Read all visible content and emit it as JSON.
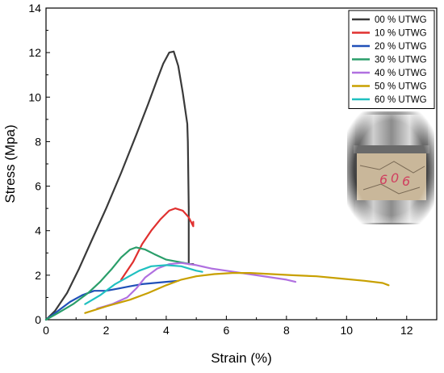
{
  "chart_data": {
    "type": "line",
    "title": "",
    "xlabel": "Strain (%)",
    "ylabel": "Stress (Mpa)",
    "xlim": [
      0,
      13
    ],
    "ylim": [
      0,
      14
    ],
    "xticks": [
      0,
      2,
      4,
      6,
      8,
      10,
      12
    ],
    "yticks": [
      0,
      2,
      4,
      6,
      8,
      10,
      12,
      14
    ],
    "grid": false,
    "legend_position": "top-right",
    "inset_photo": "cylindrical specimen in compression test",
    "series": [
      {
        "name": "00 % UTWG",
        "color": "#3a3a3a",
        "points": [
          [
            0,
            0
          ],
          [
            0.3,
            0.4
          ],
          [
            0.7,
            1.2
          ],
          [
            1.1,
            2.3
          ],
          [
            1.5,
            3.5
          ],
          [
            2.0,
            5.0
          ],
          [
            2.5,
            6.6
          ],
          [
            3.0,
            8.3
          ],
          [
            3.4,
            9.7
          ],
          [
            3.7,
            10.8
          ],
          [
            3.9,
            11.5
          ],
          [
            4.1,
            12.0
          ],
          [
            4.25,
            12.05
          ],
          [
            4.4,
            11.4
          ],
          [
            4.55,
            10.2
          ],
          [
            4.7,
            8.8
          ],
          [
            4.72,
            8.0
          ],
          [
            4.75,
            5.0
          ],
          [
            4.75,
            2.5
          ],
          [
            4.9,
            2.5
          ]
        ]
      },
      {
        "name": "10 % UTWG",
        "color": "#e0302f",
        "points": [
          [
            2.5,
            1.8
          ],
          [
            2.9,
            2.6
          ],
          [
            3.2,
            3.4
          ],
          [
            3.5,
            4.0
          ],
          [
            3.8,
            4.5
          ],
          [
            4.1,
            4.9
          ],
          [
            4.3,
            5.0
          ],
          [
            4.55,
            4.9
          ],
          [
            4.75,
            4.6
          ],
          [
            4.9,
            4.2
          ],
          [
            4.9,
            4.4
          ]
        ]
      },
      {
        "name": "20 % UTWG",
        "color": "#2050b8",
        "points": [
          [
            0,
            0
          ],
          [
            0.4,
            0.4
          ],
          [
            0.8,
            0.8
          ],
          [
            1.2,
            1.1
          ],
          [
            1.6,
            1.3
          ],
          [
            2.0,
            1.3
          ],
          [
            2.4,
            1.4
          ],
          [
            2.8,
            1.5
          ],
          [
            3.2,
            1.6
          ],
          [
            3.6,
            1.65
          ],
          [
            4.0,
            1.7
          ],
          [
            4.4,
            1.75
          ]
        ]
      },
      {
        "name": "30 % UTWG",
        "color": "#2a9e6a",
        "points": [
          [
            0,
            0
          ],
          [
            0.4,
            0.3
          ],
          [
            0.9,
            0.7
          ],
          [
            1.4,
            1.2
          ],
          [
            1.8,
            1.7
          ],
          [
            2.2,
            2.3
          ],
          [
            2.5,
            2.8
          ],
          [
            2.8,
            3.15
          ],
          [
            3.0,
            3.25
          ],
          [
            3.3,
            3.15
          ],
          [
            3.6,
            2.95
          ],
          [
            4.0,
            2.7
          ],
          [
            4.4,
            2.6
          ],
          [
            4.8,
            2.5
          ]
        ]
      },
      {
        "name": "40 % UTWG",
        "color": "#b070e0",
        "points": [
          [
            1.7,
            0.5
          ],
          [
            2.2,
            0.7
          ],
          [
            2.7,
            1.0
          ],
          [
            3.0,
            1.4
          ],
          [
            3.3,
            1.9
          ],
          [
            3.7,
            2.3
          ],
          [
            4.1,
            2.5
          ],
          [
            4.5,
            2.55
          ],
          [
            5.0,
            2.45
          ],
          [
            5.5,
            2.3
          ],
          [
            6.0,
            2.2
          ],
          [
            6.5,
            2.1
          ],
          [
            7.0,
            2.0
          ],
          [
            7.5,
            1.9
          ],
          [
            8.0,
            1.8
          ],
          [
            8.3,
            1.7
          ]
        ]
      },
      {
        "name": "50 % UTWG",
        "color": "#c8a000",
        "points": [
          [
            1.3,
            0.3
          ],
          [
            2.0,
            0.6
          ],
          [
            2.8,
            0.9
          ],
          [
            3.4,
            1.2
          ],
          [
            4.0,
            1.55
          ],
          [
            4.5,
            1.8
          ],
          [
            5.0,
            1.95
          ],
          [
            5.6,
            2.05
          ],
          [
            6.2,
            2.1
          ],
          [
            6.8,
            2.1
          ],
          [
            7.5,
            2.05
          ],
          [
            8.2,
            2.0
          ],
          [
            9.0,
            1.95
          ],
          [
            9.8,
            1.85
          ],
          [
            10.6,
            1.75
          ],
          [
            11.2,
            1.65
          ],
          [
            11.4,
            1.55
          ]
        ]
      },
      {
        "name": "60 % UTWG",
        "color": "#20c0c0",
        "points": [
          [
            1.3,
            0.7
          ],
          [
            1.8,
            1.1
          ],
          [
            2.3,
            1.6
          ],
          [
            2.7,
            1.9
          ],
          [
            3.1,
            2.2
          ],
          [
            3.5,
            2.4
          ],
          [
            4.0,
            2.45
          ],
          [
            4.5,
            2.4
          ],
          [
            5.0,
            2.2
          ],
          [
            5.2,
            2.15
          ]
        ]
      }
    ]
  }
}
